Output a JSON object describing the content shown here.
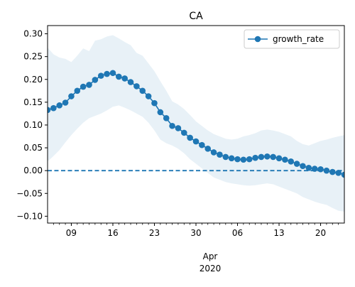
{
  "chart_data": {
    "type": "line",
    "title": "CA",
    "xlabel": "",
    "ylabel": "",
    "x_start_date": "2020-03-05",
    "x_range_dates": [
      "2020-03-05",
      "2020-04-24"
    ],
    "ylim": [
      -0.115,
      0.318
    ],
    "grid": false,
    "legend_position": "upper right",
    "month_label": "Apr",
    "year_label": "2020",
    "x_ticks": [
      {
        "date": "2020-03-09",
        "label": "09"
      },
      {
        "date": "2020-03-16",
        "label": "16"
      },
      {
        "date": "2020-03-23",
        "label": "23"
      },
      {
        "date": "2020-03-30",
        "label": "30"
      },
      {
        "date": "2020-04-06",
        "label": "06"
      },
      {
        "date": "2020-04-13",
        "label": "13"
      },
      {
        "date": "2020-04-20",
        "label": "20"
      }
    ],
    "y_ticks": [
      -0.1,
      -0.05,
      0.0,
      0.05,
      0.1,
      0.15,
      0.2,
      0.25,
      0.3
    ],
    "y_tick_labels": [
      "−0.10",
      "−0.05",
      "0.00",
      "0.05",
      "0.10",
      "0.15",
      "0.20",
      "0.25",
      "0.30"
    ],
    "reference_line": {
      "y": 0.0,
      "style": "dashed",
      "color": "#1f77b4"
    },
    "series": [
      {
        "name": "growth_rate",
        "color": "#1f77b4",
        "values": [
          0.133,
          0.137,
          0.143,
          0.149,
          0.163,
          0.175,
          0.184,
          0.188,
          0.199,
          0.208,
          0.212,
          0.214,
          0.206,
          0.202,
          0.194,
          0.185,
          0.175,
          0.163,
          0.148,
          0.128,
          0.115,
          0.098,
          0.093,
          0.083,
          0.072,
          0.064,
          0.056,
          0.048,
          0.04,
          0.035,
          0.03,
          0.027,
          0.025,
          0.024,
          0.025,
          0.028,
          0.03,
          0.031,
          0.03,
          0.027,
          0.024,
          0.02,
          0.015,
          0.01,
          0.006,
          0.004,
          0.003,
          0.0,
          -0.003,
          -0.005,
          -0.009,
          -0.012
        ]
      }
    ],
    "band": {
      "color": "#1f77b4",
      "opacity": 0.1,
      "upper": [
        0.27,
        0.255,
        0.248,
        0.245,
        0.238,
        0.252,
        0.268,
        0.262,
        0.285,
        0.288,
        0.294,
        0.297,
        0.29,
        0.282,
        0.275,
        0.258,
        0.252,
        0.235,
        0.218,
        0.196,
        0.175,
        0.152,
        0.145,
        0.135,
        0.122,
        0.108,
        0.098,
        0.088,
        0.08,
        0.075,
        0.07,
        0.068,
        0.07,
        0.075,
        0.078,
        0.082,
        0.088,
        0.09,
        0.088,
        0.085,
        0.08,
        0.075,
        0.065,
        0.058,
        0.055,
        0.06,
        0.065,
        0.068,
        0.072,
        0.075,
        0.078,
        0.08
      ],
      "lower": [
        0.02,
        0.032,
        0.045,
        0.062,
        0.078,
        0.092,
        0.105,
        0.115,
        0.12,
        0.125,
        0.132,
        0.14,
        0.143,
        0.138,
        0.132,
        0.125,
        0.118,
        0.105,
        0.088,
        0.068,
        0.06,
        0.055,
        0.048,
        0.038,
        0.025,
        0.015,
        0.005,
        -0.005,
        -0.015,
        -0.02,
        -0.025,
        -0.028,
        -0.03,
        -0.032,
        -0.033,
        -0.032,
        -0.03,
        -0.028,
        -0.03,
        -0.035,
        -0.04,
        -0.045,
        -0.05,
        -0.058,
        -0.063,
        -0.068,
        -0.072,
        -0.075,
        -0.082,
        -0.088,
        -0.09,
        -0.092
      ]
    }
  }
}
